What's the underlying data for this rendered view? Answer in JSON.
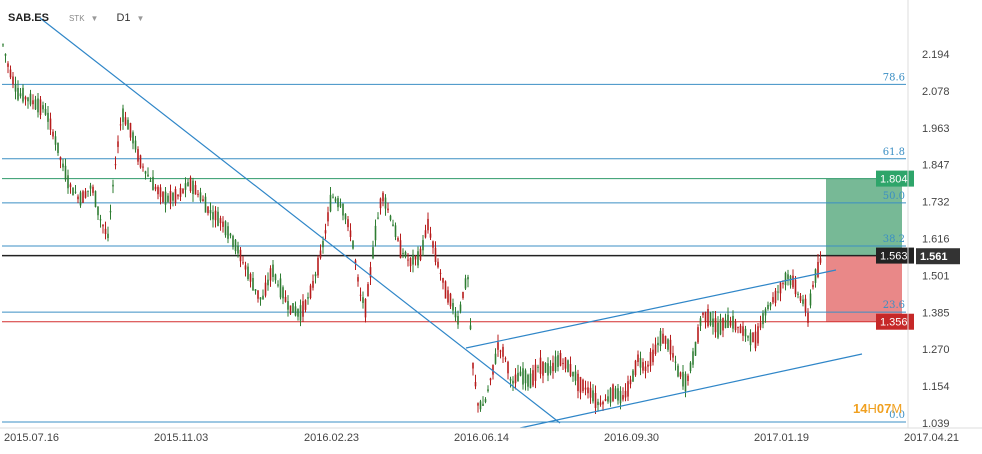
{
  "toolbar": {
    "symbol": "SAB.ES",
    "type": "STK",
    "timeframe": "D1"
  },
  "countdown": {
    "hours": "14",
    "h": "H",
    "minutes": "07",
    "m": "M"
  },
  "colors": {
    "fib": "#3b8fc4",
    "trend": "#2f86c8",
    "up_candle": "#2e7d32",
    "down_candle": "#b71c1c",
    "profit_zone": "#5fad84",
    "loss_zone": "#e57373",
    "current_price_tag": "#222222",
    "last_price_tag": "#333333",
    "target_tag": "#2ea56a",
    "stop_tag": "#c62828",
    "stop_line": "#d32f2f",
    "timer": "#f0a020"
  },
  "chart_data": {
    "type": "candlestick",
    "x_tick_labels": [
      "2015.07.16",
      "2015.11.03",
      "2016.02.23",
      "2016.06.14",
      "2016.09.30",
      "2017.01.19",
      "2017.04.21"
    ],
    "y_tick_labels": [
      "2.194",
      "2.078",
      "1.963",
      "1.847",
      "1.732",
      "1.616",
      "1.501",
      "1.385",
      "1.270",
      "1.154",
      "1.039"
    ],
    "ylim": [
      1.039,
      2.194
    ],
    "grid": false,
    "fib_levels": [
      {
        "label": "78.6",
        "value": 2.099
      },
      {
        "label": "61.8",
        "value": 1.866
      },
      {
        "label": "50.0",
        "value": 1.728
      },
      {
        "label": "38.2",
        "value": 1.593
      },
      {
        "label": "23.6",
        "value": 1.386
      },
      {
        "label": "0.0",
        "value": 1.042
      }
    ],
    "horizontal_lines": [
      {
        "name": "target",
        "value": 1.804
      },
      {
        "name": "current",
        "value": 1.563
      },
      {
        "name": "stop",
        "value": 1.356
      }
    ],
    "price_tags": [
      {
        "name": "target",
        "text": "1.804",
        "value": 1.804
      },
      {
        "name": "current",
        "text": "1.563",
        "value": 1.563
      },
      {
        "name": "last",
        "text": "1.561",
        "value": 1.561
      },
      {
        "name": "stop",
        "text": "1.356",
        "value": 1.356
      }
    ],
    "price_path": [
      [
        0,
        2.26
      ],
      [
        8,
        2.16
      ],
      [
        18,
        2.07
      ],
      [
        30,
        2.05
      ],
      [
        45,
        2.02
      ],
      [
        55,
        1.93
      ],
      [
        62,
        1.85
      ],
      [
        70,
        1.78
      ],
      [
        80,
        1.74
      ],
      [
        92,
        1.78
      ],
      [
        100,
        1.68
      ],
      [
        108,
        1.62
      ],
      [
        115,
        1.84
      ],
      [
        122,
        2.01
      ],
      [
        130,
        1.96
      ],
      [
        140,
        1.86
      ],
      [
        152,
        1.79
      ],
      [
        165,
        1.74
      ],
      [
        178,
        1.75
      ],
      [
        190,
        1.79
      ],
      [
        200,
        1.75
      ],
      [
        210,
        1.7
      ],
      [
        222,
        1.67
      ],
      [
        235,
        1.6
      ],
      [
        245,
        1.53
      ],
      [
        255,
        1.46
      ],
      [
        262,
        1.42
      ],
      [
        272,
        1.52
      ],
      [
        280,
        1.46
      ],
      [
        290,
        1.4
      ],
      [
        300,
        1.38
      ],
      [
        310,
        1.44
      ],
      [
        322,
        1.58
      ],
      [
        332,
        1.75
      ],
      [
        342,
        1.72
      ],
      [
        352,
        1.62
      ],
      [
        360,
        1.44
      ],
      [
        366,
        1.4
      ],
      [
        374,
        1.6
      ],
      [
        382,
        1.76
      ],
      [
        390,
        1.69
      ],
      [
        400,
        1.59
      ],
      [
        410,
        1.54
      ],
      [
        420,
        1.56
      ],
      [
        428,
        1.66
      ],
      [
        436,
        1.56
      ],
      [
        444,
        1.47
      ],
      [
        452,
        1.41
      ],
      [
        458,
        1.36
      ],
      [
        464,
        1.46
      ],
      [
        468,
        1.49
      ],
      [
        472,
        1.24
      ],
      [
        478,
        1.1
      ],
      [
        484,
        1.09
      ],
      [
        492,
        1.19
      ],
      [
        498,
        1.28
      ],
      [
        505,
        1.25
      ],
      [
        512,
        1.16
      ],
      [
        520,
        1.19
      ],
      [
        530,
        1.17
      ],
      [
        540,
        1.22
      ],
      [
        550,
        1.2
      ],
      [
        560,
        1.24
      ],
      [
        570,
        1.21
      ],
      [
        580,
        1.16
      ],
      [
        590,
        1.14
      ],
      [
        598,
        1.1
      ],
      [
        606,
        1.11
      ],
      [
        614,
        1.14
      ],
      [
        622,
        1.11
      ],
      [
        630,
        1.16
      ],
      [
        638,
        1.24
      ],
      [
        646,
        1.21
      ],
      [
        654,
        1.26
      ],
      [
        662,
        1.31
      ],
      [
        670,
        1.28
      ],
      [
        678,
        1.2
      ],
      [
        686,
        1.16
      ],
      [
        694,
        1.25
      ],
      [
        702,
        1.38
      ],
      [
        710,
        1.37
      ],
      [
        718,
        1.33
      ],
      [
        728,
        1.36
      ],
      [
        738,
        1.34
      ],
      [
        748,
        1.31
      ],
      [
        756,
        1.3
      ],
      [
        764,
        1.38
      ],
      [
        772,
        1.42
      ],
      [
        780,
        1.46
      ],
      [
        787,
        1.5
      ],
      [
        793,
        1.48
      ],
      [
        799,
        1.44
      ],
      [
        805,
        1.41
      ],
      [
        808,
        1.37
      ],
      [
        812,
        1.46
      ],
      [
        818,
        1.52
      ],
      [
        822,
        1.56
      ]
    ]
  }
}
